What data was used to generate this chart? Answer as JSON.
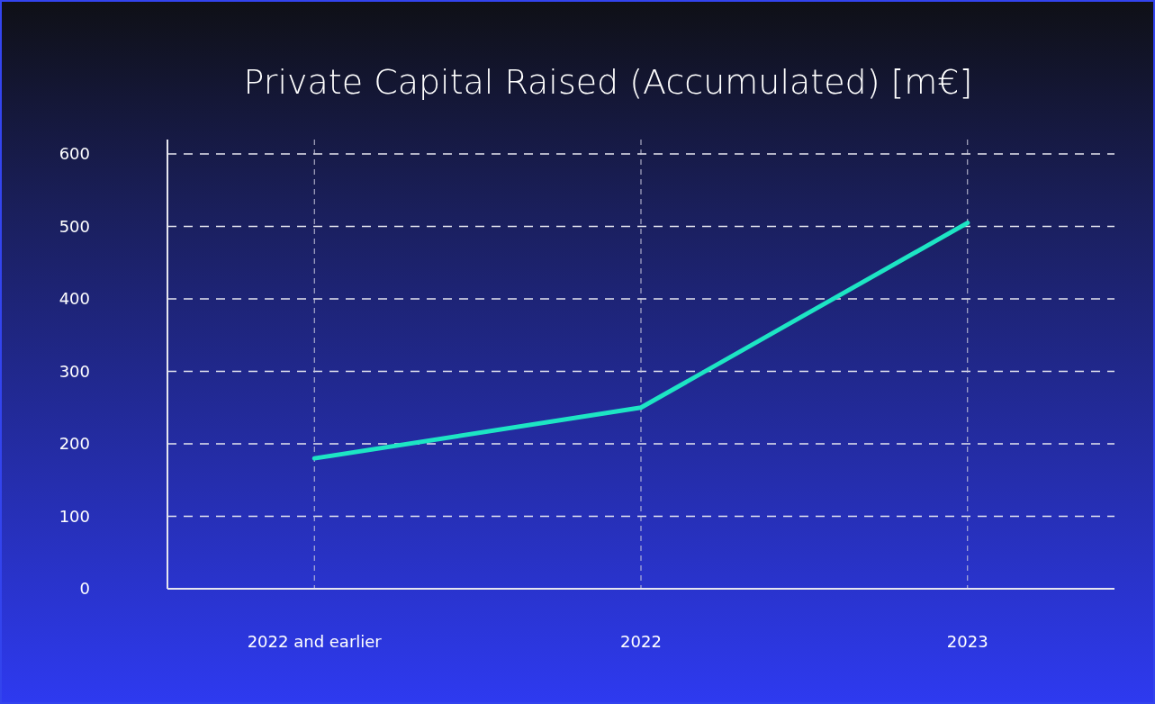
{
  "chart_data": {
    "type": "line",
    "title": "Private Capital Raised (Accumulated) [m€]",
    "categories": [
      "2022 and earlier",
      "2022",
      "2023"
    ],
    "series": [
      {
        "color": "#1de5c4",
        "values": [
          180,
          250,
          505
        ]
      }
    ],
    "ylim": [
      0,
      620
    ],
    "yticks": [
      0,
      100,
      200,
      300,
      400,
      500,
      600
    ],
    "grid": true,
    "marker": "none",
    "line_style": "solid"
  }
}
